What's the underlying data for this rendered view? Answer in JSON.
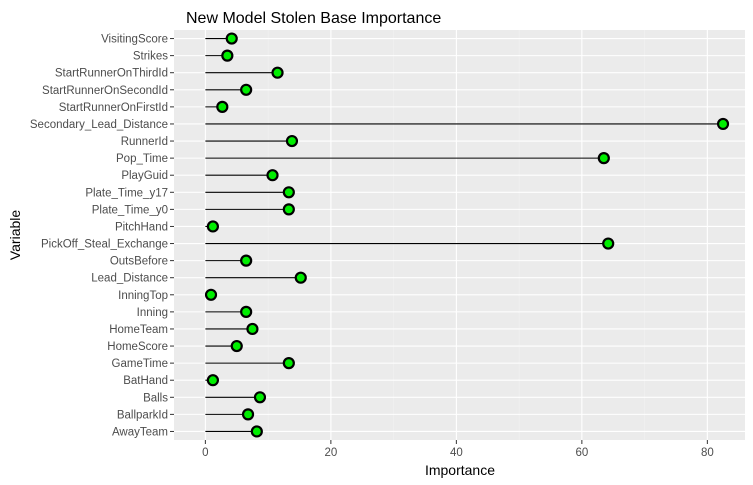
{
  "chart_data": {
    "type": "lollipop",
    "title": "New Model Stolen Base Importance",
    "xlabel": "Importance",
    "ylabel": "Variable",
    "xlim": [
      -5,
      86
    ],
    "x_ticks": [
      0,
      20,
      40,
      60,
      80
    ],
    "grid": true,
    "legend": "none",
    "categories": [
      "VisitingScore",
      "Strikes",
      "StartRunnerOnThirdId",
      "StartRunnerOnSecondId",
      "StartRunnerOnFirstId",
      "Secondary_Lead_Distance",
      "RunnerId",
      "Pop_Time",
      "PlayGuid",
      "Plate_Time_y17",
      "Plate_Time_y0",
      "PitchHand",
      "PickOff_Steal_Exchange",
      "OutsBefore",
      "Lead_Distance",
      "InningTop",
      "Inning",
      "HomeTeam",
      "HomeScore",
      "GameTime",
      "BatHand",
      "Balls",
      "BallparkId",
      "AwayTeam"
    ],
    "values": [
      4.2,
      3.5,
      11.5,
      6.5,
      2.7,
      82.5,
      13.8,
      63.5,
      10.7,
      13.3,
      13.3,
      1.2,
      64.2,
      6.5,
      15.2,
      0.9,
      6.5,
      7.5,
      5.0,
      13.3,
      1.2,
      8.7,
      6.8,
      8.2
    ],
    "colors": {
      "panel_background": "#ebebeb",
      "grid_major": "#ffffff",
      "grid_minor": "#f2f2f2",
      "point_fill": "#00ee00",
      "point_stroke": "#000000",
      "segment": "#000000",
      "tick_text": "#4d4d4d",
      "tick_mark": "#333333"
    }
  }
}
